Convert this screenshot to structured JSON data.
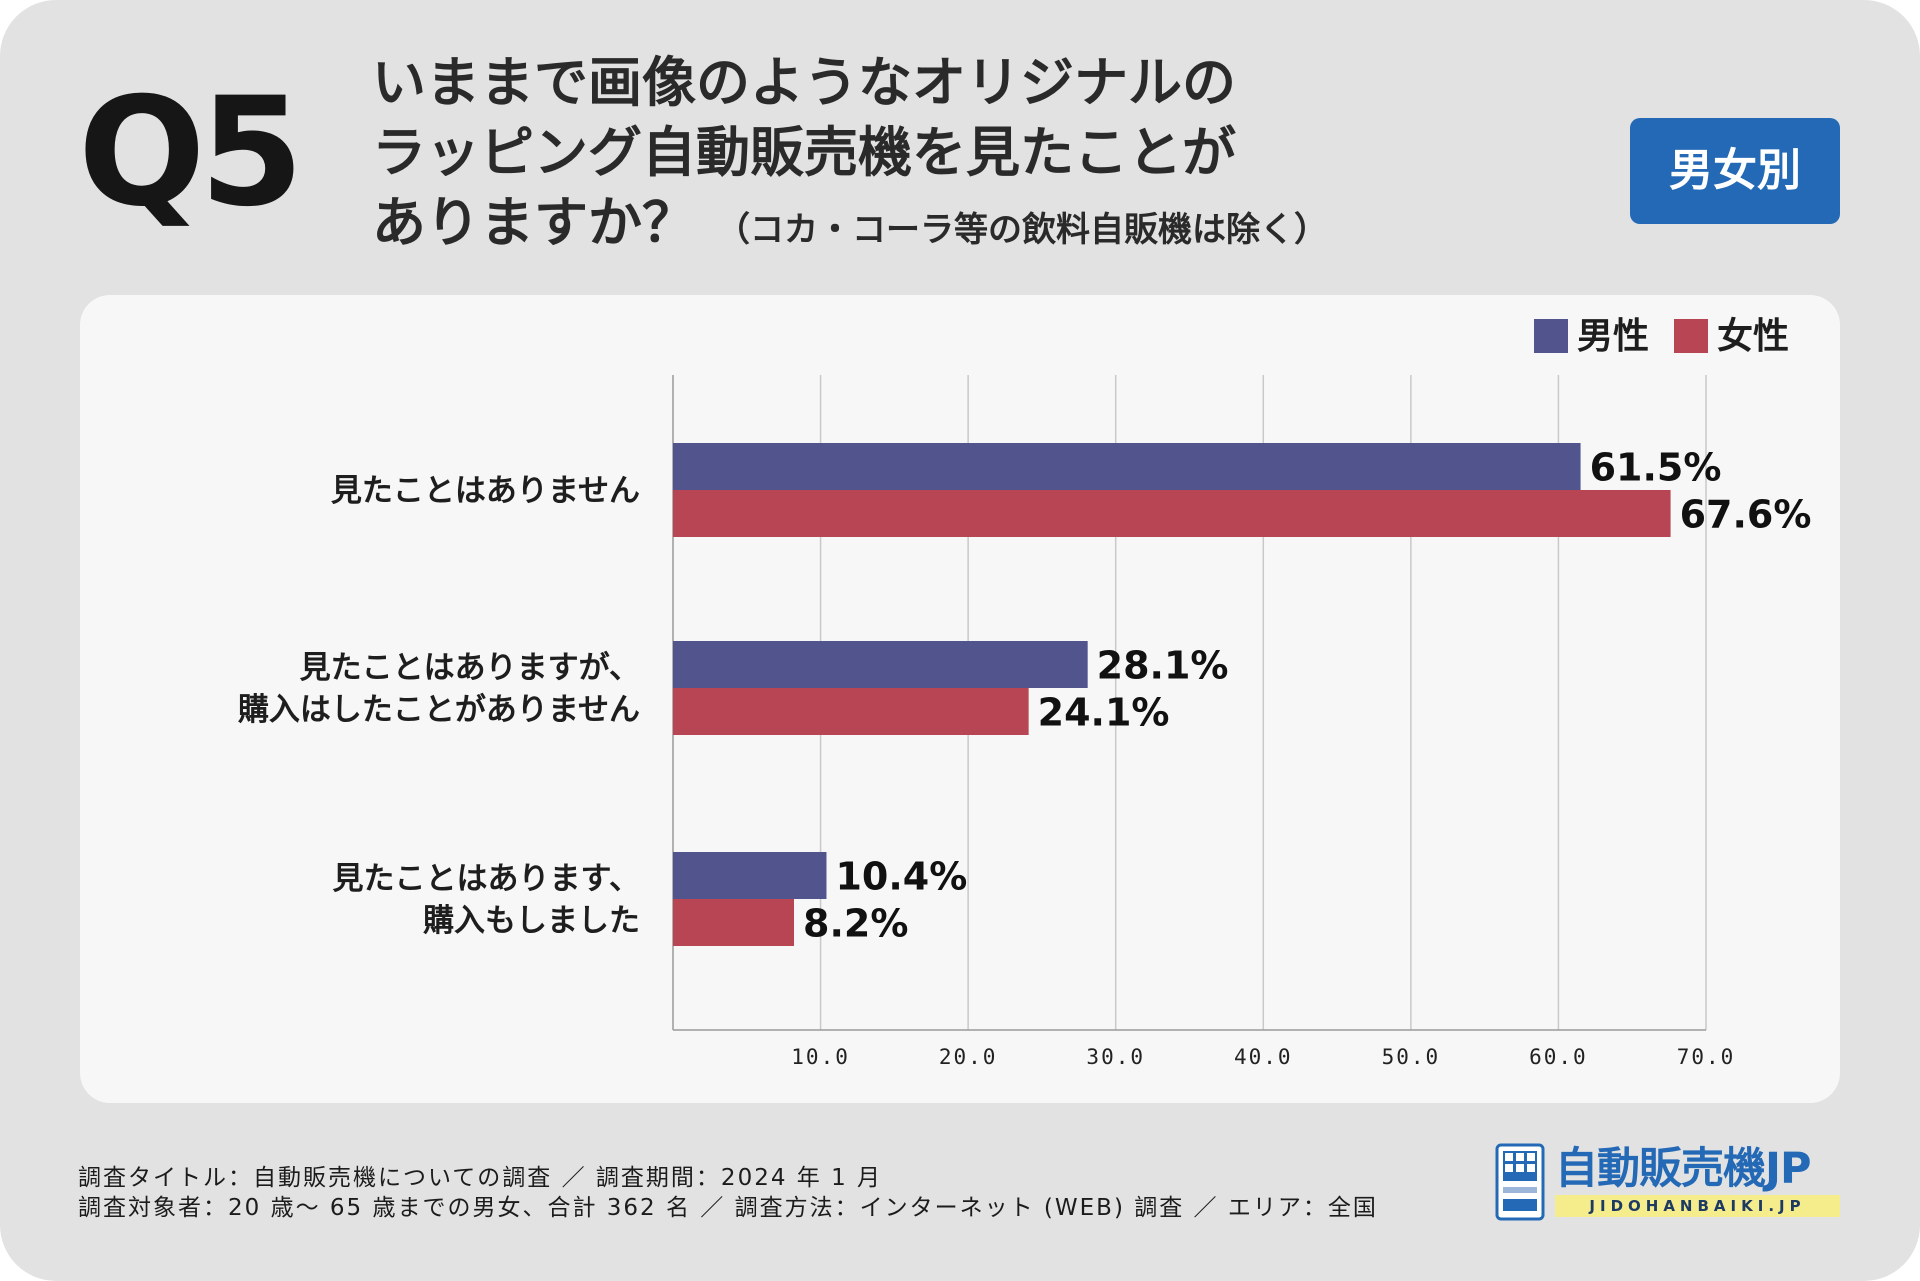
{
  "header": {
    "question_number": "Q5",
    "question_lines": [
      "いままで画像のようなオリジナルの",
      "ラッピング自動販売機を見たことが",
      "ありますか？"
    ],
    "question_note": "（コカ・コーラ等の飲料自販機は除く）",
    "tag_label": "男女別"
  },
  "footer": {
    "line1": "調査タイトル：自動販売機についての調査 ／ 調査期間：2024 年 1 月",
    "line2": "調査対象者：20 歳〜 65 歳までの男女、合計 362 名 ／ 調査方法：インターネット (WEB) 調査 ／ エリア：全国"
  },
  "logo": {
    "name": "自動販売機JP",
    "url": "JIDOHANBAIKI.JP"
  },
  "colors": {
    "male": "#52548e",
    "female": "#b74553",
    "accent": "#2369b6"
  },
  "chart_data": {
    "type": "bar",
    "orientation": "horizontal",
    "categories": [
      [
        "見たことはありません"
      ],
      [
        "見たことはありますが、",
        "購入はしたことがありません"
      ],
      [
        "見たことはあります、",
        "購入もしました"
      ]
    ],
    "series": [
      {
        "name": "男性",
        "values": [
          61.5,
          28.1,
          10.4
        ],
        "labels": [
          "61.5%",
          "28.1%",
          "10.4%"
        ]
      },
      {
        "name": "女性",
        "values": [
          67.6,
          24.1,
          8.2
        ],
        "labels": [
          "67.6%",
          "24.1%",
          "8.2%"
        ]
      }
    ],
    "xlim": [
      0,
      70
    ],
    "xticks": [
      10,
      20,
      30,
      40,
      50,
      60,
      70
    ],
    "xtick_labels": [
      "10.0",
      "20.0",
      "30.0",
      "40.0",
      "50.0",
      "60.0",
      "70.0"
    ],
    "grid": true,
    "legend": "top-right"
  }
}
